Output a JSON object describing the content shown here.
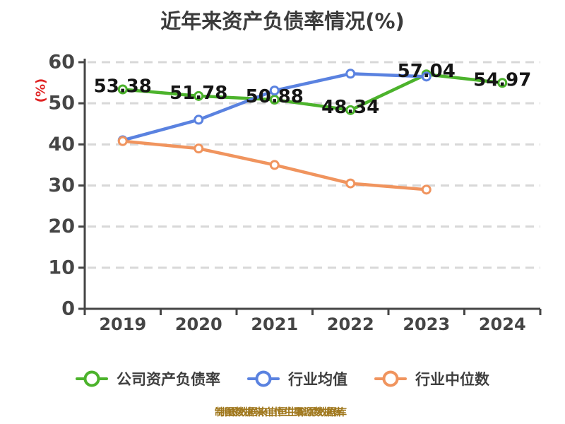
{
  "title": "近年来资产负债率情况(%)",
  "y_axis_label": "(%)",
  "footer": "制图数据来自恒生聚源数据库",
  "colors": {
    "company": "#4cb32c",
    "industry_mean": "#5a82e0",
    "industry_median": "#f0945e",
    "grid": "#d8d8d8",
    "axis": "#454545",
    "tick_label": "#454545",
    "value_label": "#151515",
    "ylabel": "#e02424",
    "title": "#3b3b3b",
    "legend_text": "#3f3f3f",
    "footer": "#a0781e",
    "marker_fill": "#ffffff"
  },
  "chart_data": {
    "type": "line",
    "title": "近年来资产负债率情况(%)",
    "xlabel": "",
    "ylabel": "(%)",
    "categories": [
      "2019",
      "2020",
      "2021",
      "2022",
      "2023",
      "2024"
    ],
    "series": [
      {
        "name": "公司资产负债率",
        "color_key": "company",
        "values": [
          53.38,
          51.78,
          50.88,
          48.34,
          57.04,
          54.97
        ],
        "point_labels": [
          "53.38",
          "51.78",
          "50.88",
          "48.34",
          "57.04",
          "54.97"
        ]
      },
      {
        "name": "行业均值",
        "color_key": "industry_mean",
        "values": [
          41,
          46,
          53.1,
          57.2,
          56.5
        ]
      },
      {
        "name": "行业中位数",
        "color_key": "industry_median",
        "values": [
          40.8,
          39,
          35,
          30.5,
          29
        ]
      }
    ],
    "ylim": [
      0,
      60
    ],
    "yticks": [
      0,
      10,
      20,
      30,
      40,
      50,
      60
    ],
    "grid": "horizontal-dashed",
    "legend_position": "bottom",
    "marker": "circle-white-fill"
  }
}
